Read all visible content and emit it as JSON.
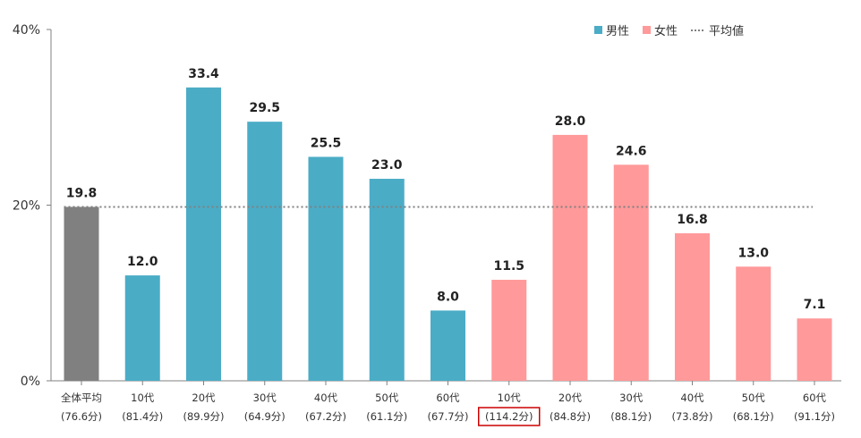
{
  "chart_data": {
    "type": "bar",
    "ylim": [
      0,
      40
    ],
    "yticks": [
      "0%",
      "20%",
      "40%"
    ],
    "categories": [
      {
        "label": "全体平均",
        "sub": "(76.6分)",
        "group": "all"
      },
      {
        "label": "10代",
        "sub": "(81.4分)",
        "group": "male"
      },
      {
        "label": "20代",
        "sub": "(89.9分)",
        "group": "male"
      },
      {
        "label": "30代",
        "sub": "(64.9分)",
        "group": "male"
      },
      {
        "label": "40代",
        "sub": "(67.2分)",
        "group": "male"
      },
      {
        "label": "50代",
        "sub": "(61.1分)",
        "group": "male"
      },
      {
        "label": "60代",
        "sub": "(67.7分)",
        "group": "male"
      },
      {
        "label": "10代",
        "sub": "(114.2分)",
        "group": "female",
        "highlight": true
      },
      {
        "label": "20代",
        "sub": "(84.8分)",
        "group": "female"
      },
      {
        "label": "30代",
        "sub": "(88.1分)",
        "group": "female"
      },
      {
        "label": "40代",
        "sub": "(73.8分)",
        "group": "female"
      },
      {
        "label": "50代",
        "sub": "(68.1分)",
        "group": "female"
      },
      {
        "label": "60代",
        "sub": "(91.1分)",
        "group": "female"
      }
    ],
    "values": [
      19.8,
      12.0,
      33.4,
      29.5,
      25.5,
      23.0,
      8.0,
      11.5,
      28.0,
      24.6,
      16.8,
      13.0,
      7.1
    ],
    "value_labels": [
      "19.8",
      "12.0",
      "33.4",
      "29.5",
      "25.5",
      "23.0",
      "8.0",
      "11.5",
      "28.0",
      "24.6",
      "16.8",
      "13.0",
      "7.1"
    ],
    "average_line": 19.8,
    "legend": [
      {
        "key": "male",
        "label": "男性",
        "color": "#4bacc6",
        "kind": "box"
      },
      {
        "key": "female",
        "label": "女性",
        "color": "#ff999a",
        "kind": "box"
      },
      {
        "key": "avg",
        "label": "平均値",
        "color": "#808080",
        "kind": "dotted-line"
      }
    ],
    "legend_position": "top-right",
    "colors": {
      "all": "#808080",
      "male": "#4bacc6",
      "female": "#ff999a",
      "highlight_box": "#cc0000",
      "axis": "#808080"
    }
  }
}
